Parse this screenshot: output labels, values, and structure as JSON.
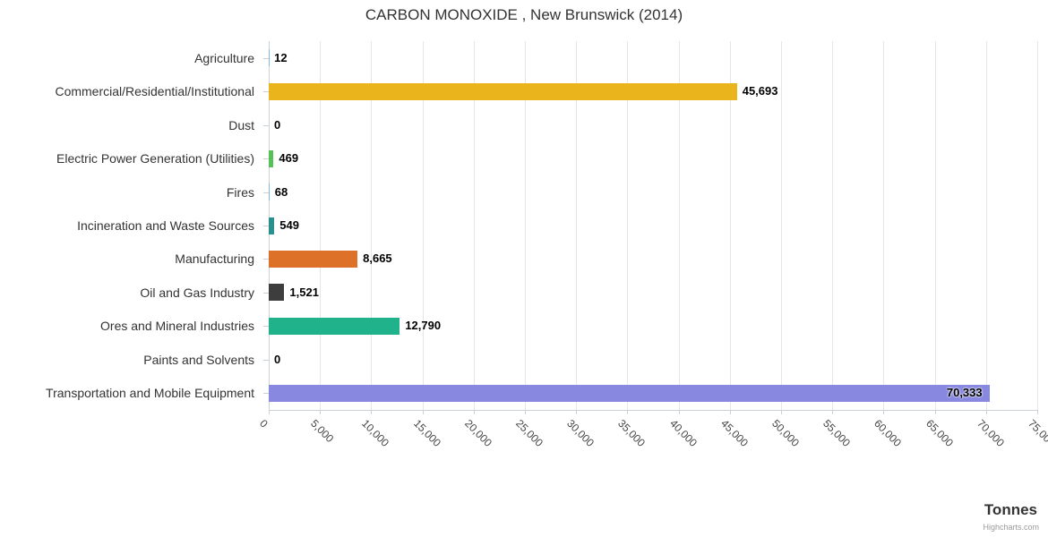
{
  "title": "CARBON MONOXIDE , New Brunswick (2014)",
  "axis_title": "Tonnes",
  "credit": "Highcharts.com",
  "chart_data": {
    "type": "bar",
    "orientation": "horizontal",
    "title": "CARBON MONOXIDE , New Brunswick (2014)",
    "xlabel": "Tonnes",
    "ylabel": "",
    "xlim": [
      0,
      75000
    ],
    "tick_interval": 5000,
    "tick_labels": [
      "0",
      "5,000",
      "10,000",
      "15,000",
      "20,000",
      "25,000",
      "30,000",
      "35,000",
      "40,000",
      "45,000",
      "50,000",
      "55,000",
      "60,000",
      "65,000",
      "70,000",
      "75,000"
    ],
    "grid": true,
    "legend": "none",
    "categories": [
      "Agriculture",
      "Commercial/Residential/Institutional",
      "Dust",
      "Electric Power Generation (Utilities)",
      "Fires",
      "Incineration and Waste Sources",
      "Manufacturing",
      "Oil and Gas Industry",
      "Ores and Mineral Industries",
      "Paints and Solvents",
      "Transportation and Mobile Equipment"
    ],
    "values": [
      12,
      45693,
      0,
      469,
      68,
      549,
      8665,
      1521,
      12790,
      0,
      70333
    ],
    "value_labels": [
      "12",
      "45,693",
      "0",
      "469",
      "68",
      "549",
      "8,665",
      "1,521",
      "12,790",
      "0",
      "70,333"
    ],
    "bar_colors": [
      "#7cb5ec",
      "#eab41c",
      "#7cb5ec",
      "#56c156",
      "#7cb5ec",
      "#2a8f8f",
      "#dd7127",
      "#3d3d3d",
      "#20b28a",
      "#7cb5ec",
      "#8888e0"
    ]
  }
}
